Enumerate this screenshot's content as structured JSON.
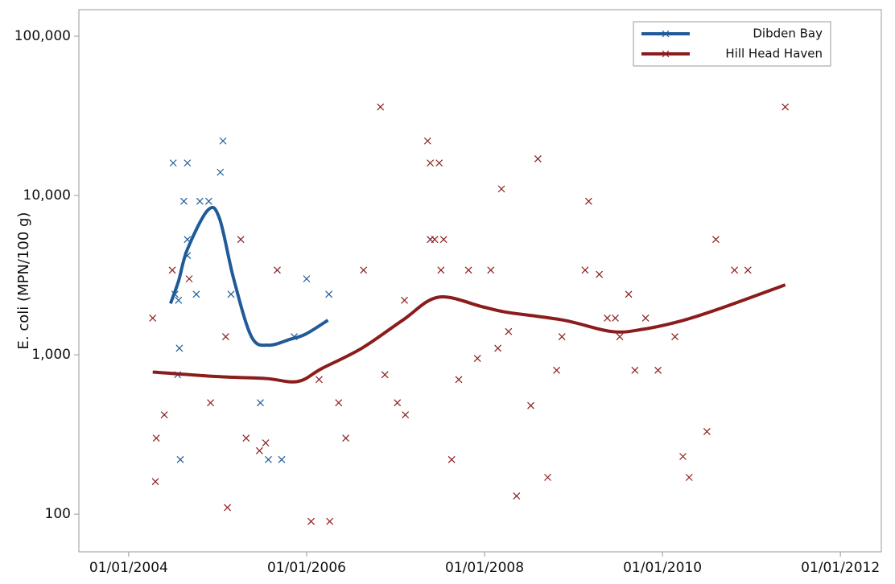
{
  "chart_data": {
    "type": "line",
    "y_label": "E. coli (MPN/100 g)",
    "ylog": true,
    "xlim": [
      2003.44,
      2012.46
    ],
    "ylim": [
      58,
      146800
    ],
    "xticks": [
      {
        "value": 2004,
        "label": "01/01/2004"
      },
      {
        "value": 2006,
        "label": "01/01/2006"
      },
      {
        "value": 2008,
        "label": "01/01/2008"
      },
      {
        "value": 2010,
        "label": "01/01/2010"
      },
      {
        "value": 2012,
        "label": "01/01/2012"
      }
    ],
    "yticks": [
      100,
      {
        "value": 1000,
        "label": "1,000"
      },
      {
        "value": 10000,
        "label": "10,000"
      },
      {
        "value": 100000,
        "label": "100,000"
      }
    ],
    "legend": "upper-right",
    "series": [
      {
        "name": "Dibden Bay",
        "color": "#1f5b98",
        "x": [
          2004.47,
          2004.56,
          2004.66,
          2004.89,
          2005.02,
          2005.18,
          2005.38,
          2005.57,
          2005.81,
          2005.99,
          2006.24
        ],
        "values": [
          2100,
          2900,
          4600,
          8100,
          7200,
          3000,
          1300,
          1150,
          1250,
          1350,
          1650
        ],
        "points": {
          "x": [
            2004.5,
            2004.66,
            2004.62,
            2004.8,
            2004.9,
            2005.06,
            2005.03,
            2004.66,
            2004.66,
            2004.52,
            2004.76,
            2004.56,
            2004.57,
            2005.15,
            2005.86,
            2005.48,
            2005.57,
            2005.72,
            2004.58,
            2006.0,
            2006.25,
            2004.55
          ],
          "values": [
            16000,
            16000,
            9200,
            9200,
            9200,
            22000,
            14000,
            5300,
            4200,
            2400,
            2400,
            2200,
            1100,
            2400,
            1300,
            500,
            220,
            220,
            220,
            3000,
            2400,
            750
          ]
        }
      },
      {
        "name": "Hill Head Haven",
        "color": "#8b1c1c",
        "x": [
          2004.27,
          2005.0,
          2005.54,
          2005.9,
          2006.17,
          2006.62,
          2007.08,
          2007.48,
          2007.98,
          2008.25,
          2008.89,
          2009.43,
          2009.79,
          2010.24,
          2010.7,
          2011.38
        ],
        "values": [
          780,
          730,
          710,
          680,
          820,
          1100,
          1650,
          2300,
          2000,
          1850,
          1650,
          1400,
          1450,
          1650,
          2000,
          2750
        ],
        "points": {
          "x": [
            2004.27,
            2004.31,
            2004.3,
            2004.4,
            2004.49,
            2004.68,
            2004.92,
            2005.09,
            2005.11,
            2005.26,
            2005.32,
            2005.47,
            2005.54,
            2005.67,
            2006.14,
            2006.05,
            2006.26,
            2006.36,
            2006.44,
            2006.64,
            2006.83,
            2006.88,
            2007.02,
            2007.1,
            2007.11,
            2007.36,
            2007.39,
            2007.39,
            2007.44,
            2007.49,
            2007.51,
            2007.54,
            2007.63,
            2007.71,
            2007.82,
            2007.92,
            2008.07,
            2008.15,
            2008.19,
            2008.27,
            2008.36,
            2008.52,
            2008.6,
            2008.71,
            2008.81,
            2008.87,
            2009.13,
            2009.17,
            2009.29,
            2009.38,
            2009.47,
            2009.52,
            2009.62,
            2009.69,
            2009.81,
            2009.95,
            2010.14,
            2010.23,
            2010.3,
            2010.5,
            2010.6,
            2010.81,
            2010.96,
            2011.38
          ],
          "values": [
            1700,
            300,
            160,
            420,
            3400,
            3000,
            500,
            1300,
            110,
            5300,
            300,
            250,
            280,
            3400,
            700,
            90,
            90,
            500,
            300,
            3400,
            36000,
            750,
            500,
            2200,
            420,
            22000,
            16000,
            5300,
            5300,
            16000,
            3400,
            5300,
            220,
            700,
            3400,
            950,
            3400,
            1100,
            11000,
            1400,
            130,
            480,
            17000,
            170,
            800,
            1300,
            3400,
            9200,
            3200,
            1700,
            1700,
            1300,
            2400,
            800,
            1700,
            800,
            1300,
            230,
            170,
            330,
            5300,
            3400,
            3400,
            36000
          ]
        }
      }
    ]
  }
}
